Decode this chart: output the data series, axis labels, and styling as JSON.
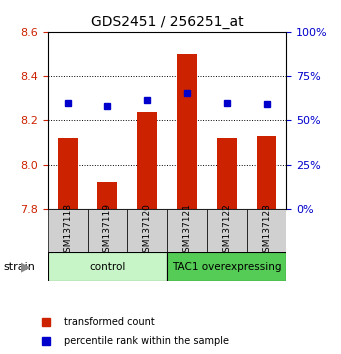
{
  "title": "GDS2451 / 256251_at",
  "samples": [
    "GSM137118",
    "GSM137119",
    "GSM137120",
    "GSM137121",
    "GSM137122",
    "GSM137123"
  ],
  "red_values": [
    8.12,
    7.92,
    8.24,
    8.5,
    8.12,
    8.13
  ],
  "blue_values": [
    8.28,
    8.265,
    8.29,
    8.325,
    8.28,
    8.275
  ],
  "ylim": [
    7.8,
    8.6
  ],
  "yticks": [
    7.8,
    8.0,
    8.2,
    8.4,
    8.6
  ],
  "right_yticks": [
    0,
    25,
    50,
    75,
    100
  ],
  "groups": [
    {
      "label": "control",
      "start": 0,
      "end": 3,
      "color": "#c8f5c8"
    },
    {
      "label": "TAC1 overexpressing",
      "start": 3,
      "end": 6,
      "color": "#55cc55"
    }
  ],
  "bar_color": "#cc2200",
  "marker_color": "#0000cc",
  "bar_bottom": 7.8,
  "tick_color_left": "#cc2200",
  "tick_color_right": "#0000cc",
  "label_red": "transformed count",
  "label_blue": "percentile rank within the sample",
  "sample_box_color": "#d0d0d0"
}
